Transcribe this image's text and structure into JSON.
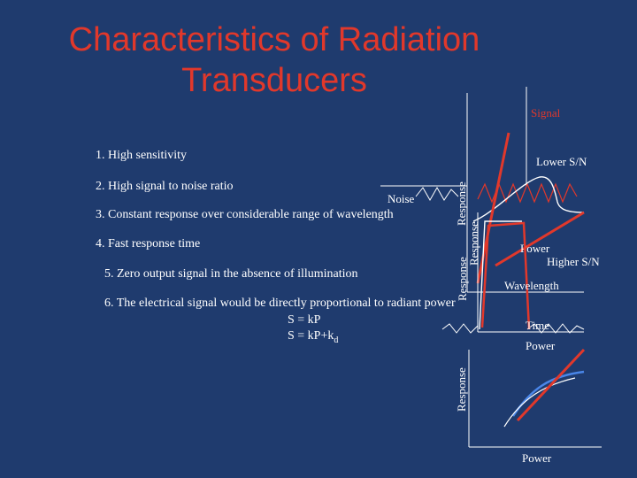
{
  "title": {
    "line1": "Characteristics of Radiation",
    "line2": "Transducers"
  },
  "items": [
    "1. High sensitivity",
    "2. High signal to noise ratio",
    "3. Constant response over considerable range of wavelength",
    "4. Fast response time",
    "5. Zero output signal in the absence of illumination",
    "6. The electrical signal would be directly proportional to radiant power"
  ],
  "equations": {
    "eq1": "S = kP",
    "eq2_main": "S = kP+k",
    "eq2_sub": "d"
  },
  "diagram_labels": {
    "signal": "Signal",
    "noise": "Noise",
    "lower_sn": "Lower S/N",
    "higher_sn": "Higher S/N",
    "power_1": "Power",
    "wavelength": "Wavelength",
    "time": "Time",
    "power_2": "Power",
    "power_3": "Power",
    "response_1": "Response",
    "response_2": "Response",
    "response_3": "Response",
    "response_4": "Response"
  },
  "colors": {
    "background": "#1f3b6e",
    "accent_red": "#e1382b",
    "curve_blue": "#4a86e8",
    "text": "#ffffff"
  }
}
